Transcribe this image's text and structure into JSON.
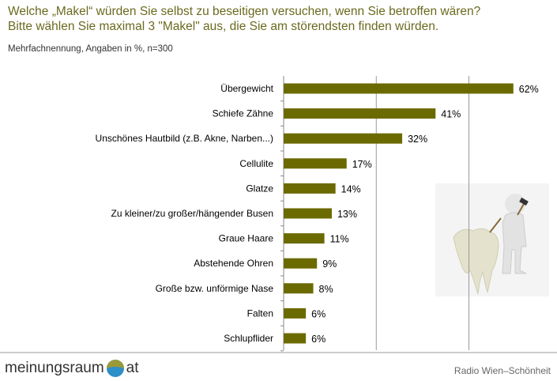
{
  "title_line1": "Welche „Makel“ würden Sie selbst zu beseitigen versuchen, wenn Sie betroffen wären?",
  "title_line2": "Bitte wählen Sie maximal 3 \"Makel\" aus, die Sie am störendsten finden würden.",
  "subtitle": "Mehrfachnennung, Angaben in %, n=300",
  "footer": {
    "logo_left": "meinungsraum",
    "logo_right": "at",
    "source": "Radio Wien–Schönheit"
  },
  "colors": {
    "bar": "#6b6a00",
    "title": "#6b6a1f"
  },
  "chart_data": {
    "type": "bar",
    "orientation": "horizontal",
    "categories": [
      "Übergewicht",
      "Schiefe Zähne",
      "Unschönes Hautbild (z.B. Akne, Narben...)",
      "Cellulite",
      "Glatze",
      "Zu kleiner/zu großer/hängender Busen",
      "Graue Haare",
      "Abstehende Ohren",
      "Große bzw. unförmige Nase",
      "Falten",
      "Schlupflider"
    ],
    "values": [
      62,
      41,
      32,
      17,
      14,
      13,
      11,
      9,
      8,
      6,
      6
    ],
    "value_labels": [
      "62%",
      "41%",
      "32%",
      "17%",
      "14%",
      "13%",
      "11%",
      "9%",
      "8%",
      "6%",
      "6%"
    ],
    "xlim": [
      0,
      75
    ],
    "gridlines": [
      25,
      50
    ],
    "unit": "%"
  }
}
